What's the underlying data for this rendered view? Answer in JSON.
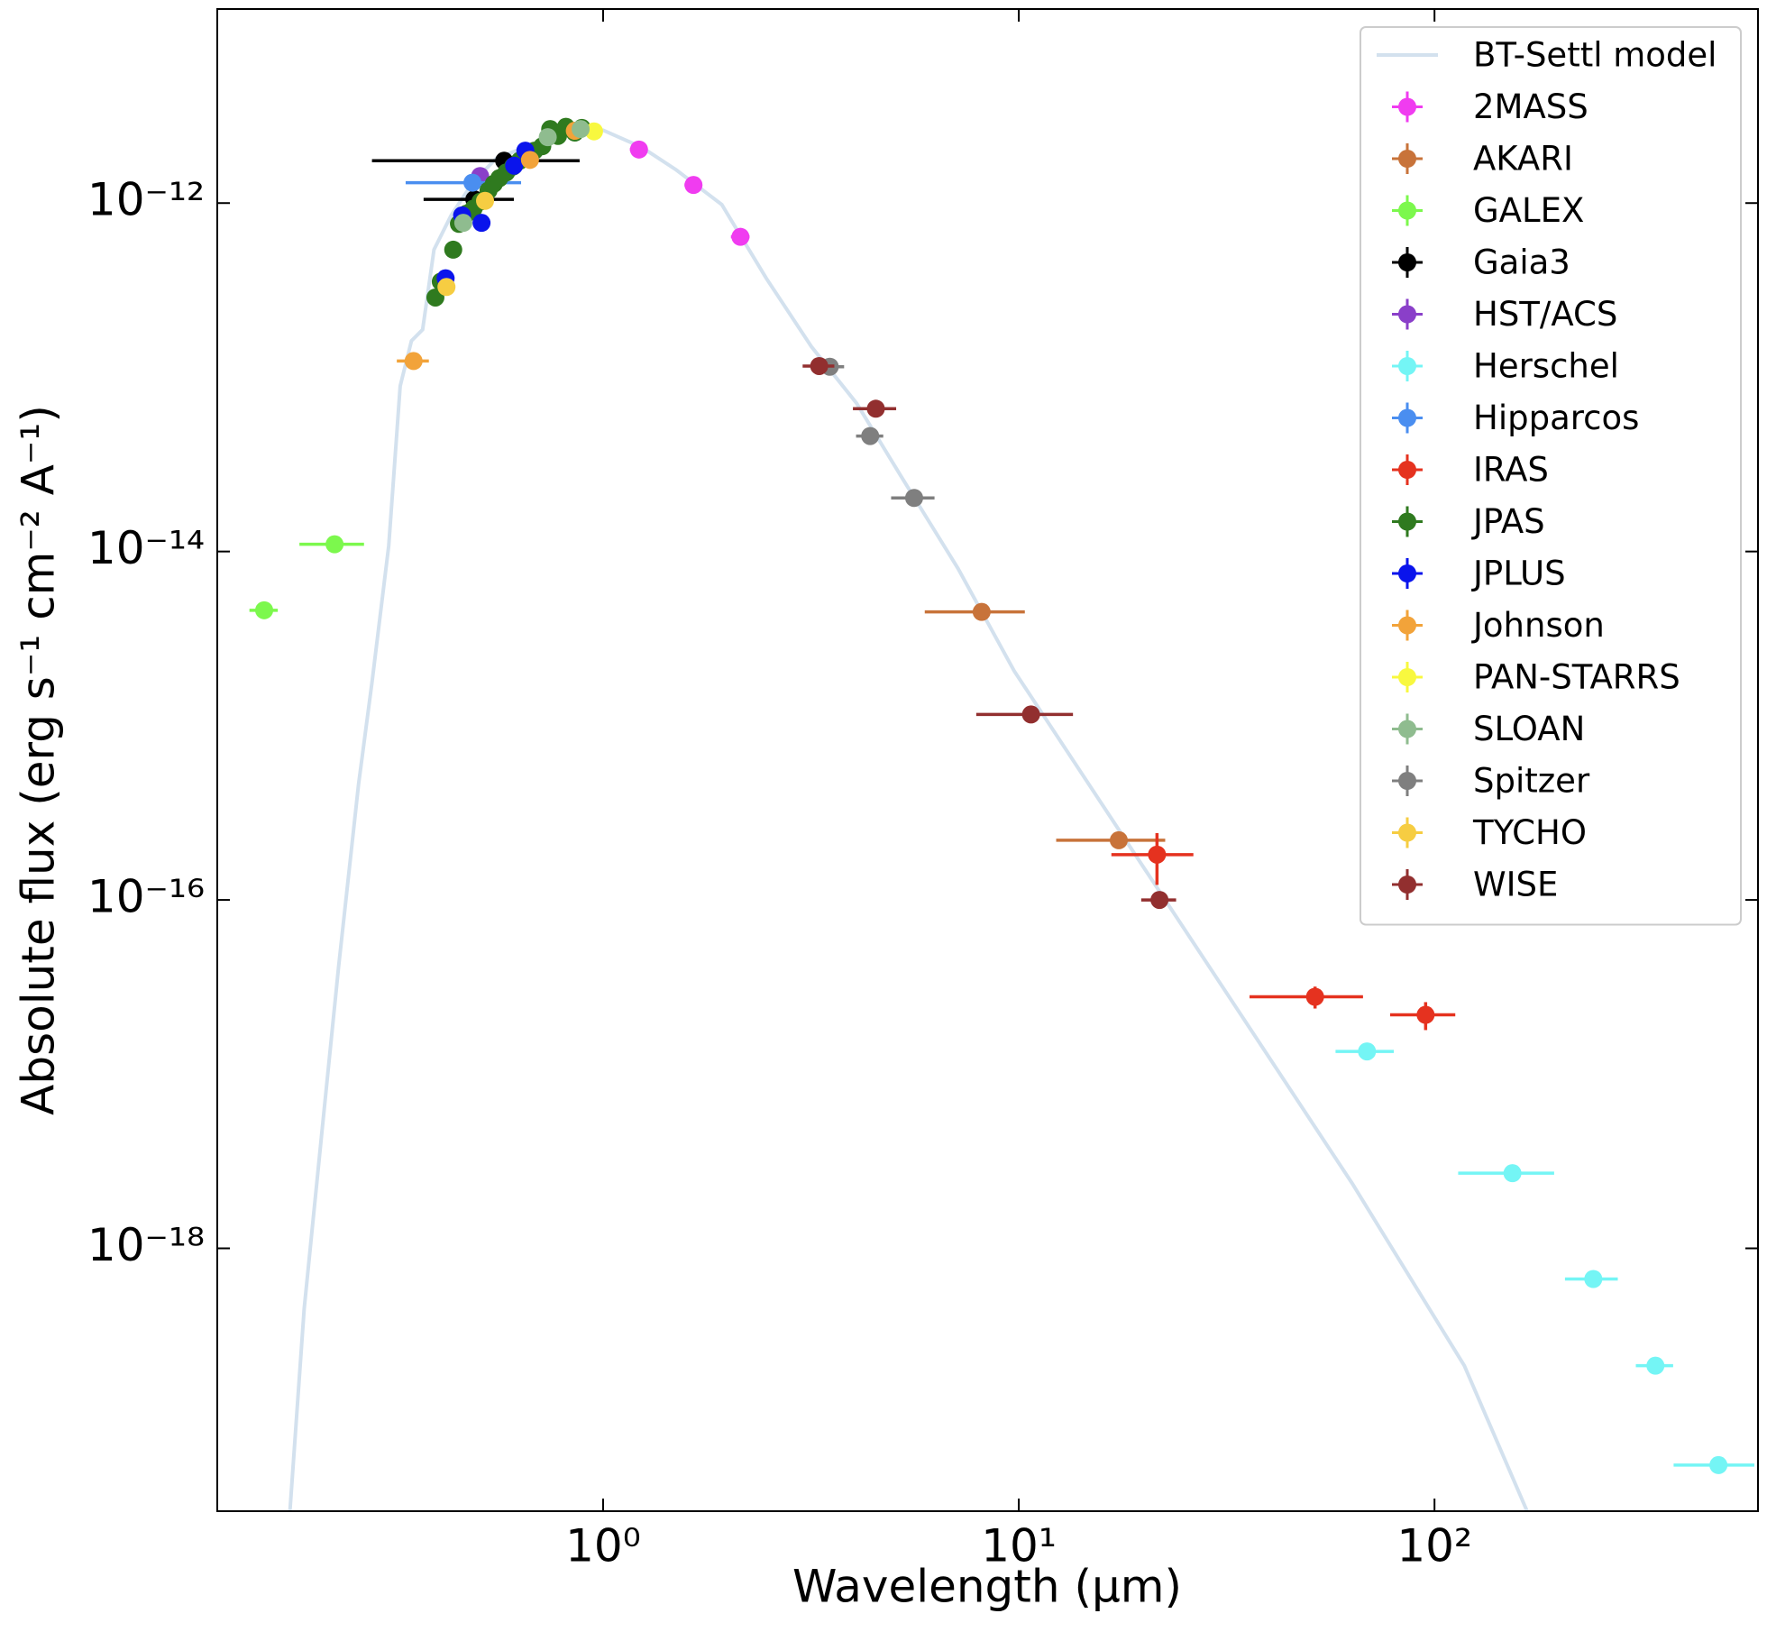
{
  "chart_data": {
    "type": "scatter",
    "x_label": "Wavelength (μm)",
    "y_label": "Absolute flux (erg s⁻¹ cm⁻² A⁻¹)",
    "xscale": "log",
    "yscale": "log",
    "xlim": [
      0.118,
      600
    ],
    "ylim": [
      3.1e-20,
      1.3e-11
    ],
    "xticks": [
      {
        "value": 1,
        "label": "10⁰"
      },
      {
        "value": 10,
        "label": "10¹"
      },
      {
        "value": 100,
        "label": "10²"
      }
    ],
    "yticks": [
      {
        "value": 1e-18,
        "label": "10⁻¹⁸"
      },
      {
        "value": 1e-16,
        "label": "10⁻¹⁶"
      },
      {
        "value": 1e-14,
        "label": "10⁻¹⁴"
      },
      {
        "value": 1e-12,
        "label": "10⁻¹²"
      }
    ],
    "tick_direction": "in",
    "legend": "upper right",
    "series": [
      {
        "name": "BT-Settl model",
        "type": "line",
        "color": "#d3e1ee",
        "x": [
          0.1765,
          0.191,
          0.21,
          0.231,
          0.258,
          0.278,
          0.305,
          0.325,
          0.346,
          0.368,
          0.392,
          0.431,
          0.488,
          0.553,
          0.667,
          0.804,
          1.0,
          1.24,
          1.5,
          1.93,
          2.47,
          3.17,
          4.07,
          5.23,
          7.14,
          9.75,
          18.2,
          34,
          63.4,
          118,
          167
        ],
        "values": [
          3.1e-20,
          4.5e-19,
          4.3e-18,
          4.1e-17,
          4.6e-16,
          1.77e-15,
          1.08e-14,
          8.9e-14,
          1.62e-13,
          1.88e-13,
          5.4e-13,
          8.5e-13,
          1.33e-12,
          1.8e-12,
          2.15e-12,
          2.5e-12,
          2.62e-12,
          2.09e-12,
          1.55e-12,
          9.8e-13,
          3.7e-13,
          1.5e-13,
          7.1e-14,
          2.66e-14,
          8e-15,
          2.06e-15,
          2.15e-16,
          2.25e-17,
          2.36e-18,
          2.12e-19,
          3.1e-20
        ]
      },
      {
        "name": "2MASS",
        "color": "#f03cf0",
        "x": [
          1.22,
          1.65,
          2.14
        ],
        "values": [
          2.03e-12,
          1.27e-12,
          6.4e-13
        ],
        "xerr": [
          0.06,
          0.08,
          0.11
        ]
      },
      {
        "name": "AKARI",
        "color": "#c8733a",
        "x": [
          8.14,
          17.4
        ],
        "values": [
          4.5e-15,
          2.2e-16
        ],
        "xerr": [
          2.2,
          5.1
        ]
      },
      {
        "name": "GALEX",
        "color": "#7cf84d",
        "x": [
          0.153,
          0.226
        ],
        "values": [
          4.6e-15,
          1.1e-14
        ],
        "xerr": [
          0.012,
          0.04
        ]
      },
      {
        "name": "Gaia3",
        "color": "#000000",
        "x": [
          0.578,
          0.49
        ],
        "values": [
          1.75e-12,
          1.05e-12
        ],
        "xerr": [
          0.3,
          0.12
        ]
      },
      {
        "name": "HST/ACS",
        "color": "#8a3fc9",
        "x": [
          0.506
        ],
        "values": [
          1.43e-12
        ]
      },
      {
        "name": "Herschel",
        "color": "#74f5f5",
        "x": [
          68.8,
          154,
          241,
          340,
          482
        ],
        "values": [
          1.35e-17,
          2.7e-18,
          6.67e-19,
          2.12e-19,
          5.7e-20
        ],
        "xerr": [
          11,
          40,
          35,
          35,
          106
        ]
      },
      {
        "name": "Hipparcos",
        "color": "#4a8ef0",
        "x": [
          0.485
        ],
        "values": [
          1.31e-12
        ],
        "xerr": [
          0.15
        ]
      },
      {
        "name": "IRAS",
        "color": "#e5321f",
        "x": [
          21.5,
          51.6,
          95.2
        ],
        "values": [
          1.82e-16,
          2.78e-17,
          2.19e-17
        ],
        "xerr": [
          4.8,
          15.7,
          17
        ],
        "yerr": [
          6e-17,
          4e-18,
          4e-18
        ]
      },
      {
        "name": "JPAS",
        "color": "#2f7a1f",
        "x": [
          0.395,
          0.407,
          0.436,
          0.45,
          0.47,
          0.488,
          0.507,
          0.53,
          0.546,
          0.563,
          0.585,
          0.607,
          0.63,
          0.658,
          0.684,
          0.714,
          0.746,
          0.779,
          0.814,
          0.855,
          0.889
        ],
        "values": [
          2.87e-13,
          3.54e-13,
          5.4e-13,
          7.6e-13,
          8.7e-13,
          9.3e-13,
          1.02e-12,
          1.18e-12,
          1.29e-12,
          1.39e-12,
          1.5e-12,
          1.62e-12,
          1.75e-12,
          1.88e-12,
          2e-12,
          2.12e-12,
          2.66e-12,
          2.43e-12,
          2.74e-12,
          2.54e-12,
          2.7e-12
        ]
      },
      {
        "name": "JPLUS",
        "color": "#0a14ec",
        "x": [
          0.418,
          0.51,
          0.458,
          0.611,
          0.65
        ],
        "values": [
          3.7e-13,
          7.7e-13,
          8.5e-13,
          1.64e-12,
          2e-12
        ]
      },
      {
        "name": "Johnson",
        "color": "#f2a33a",
        "x": [
          0.35,
          0.667,
          0.855
        ],
        "values": [
          1.24e-13,
          1.77e-12,
          2.6e-12
        ],
        "xerr": [
          0.031,
          null,
          null
        ]
      },
      {
        "name": "PAN-STARRS",
        "color": "#f8f83f",
        "x": [
          0.951
        ],
        "values": [
          2.58e-12
        ]
      },
      {
        "name": "SLOAN",
        "color": "#8fbc8f",
        "x": [
          0.461,
          0.736,
          0.883
        ],
        "values": [
          7.7e-13,
          2.39e-12,
          2.66e-12
        ]
      },
      {
        "name": "Spitzer",
        "color": "#7f7f7f",
        "x": [
          3.51,
          4.39,
          5.6
        ],
        "values": [
          1.15e-13,
          4.6e-14,
          2.03e-14
        ],
        "xerr": [
          0.29,
          0.33,
          0.67
        ]
      },
      {
        "name": "TYCHO",
        "color": "#f6cd42",
        "x": [
          0.42,
          0.52
        ],
        "values": [
          3.3e-13,
          1.03e-12
        ]
      },
      {
        "name": "WISE",
        "color": "#922f2f",
        "x": [
          3.31,
          4.53,
          10.7,
          21.8
        ],
        "values": [
          1.16e-13,
          6.6e-14,
          1.16e-15,
          1e-16
        ],
        "xerr": [
          0.29,
          0.54,
          2.8,
          2.1
        ]
      }
    ]
  }
}
